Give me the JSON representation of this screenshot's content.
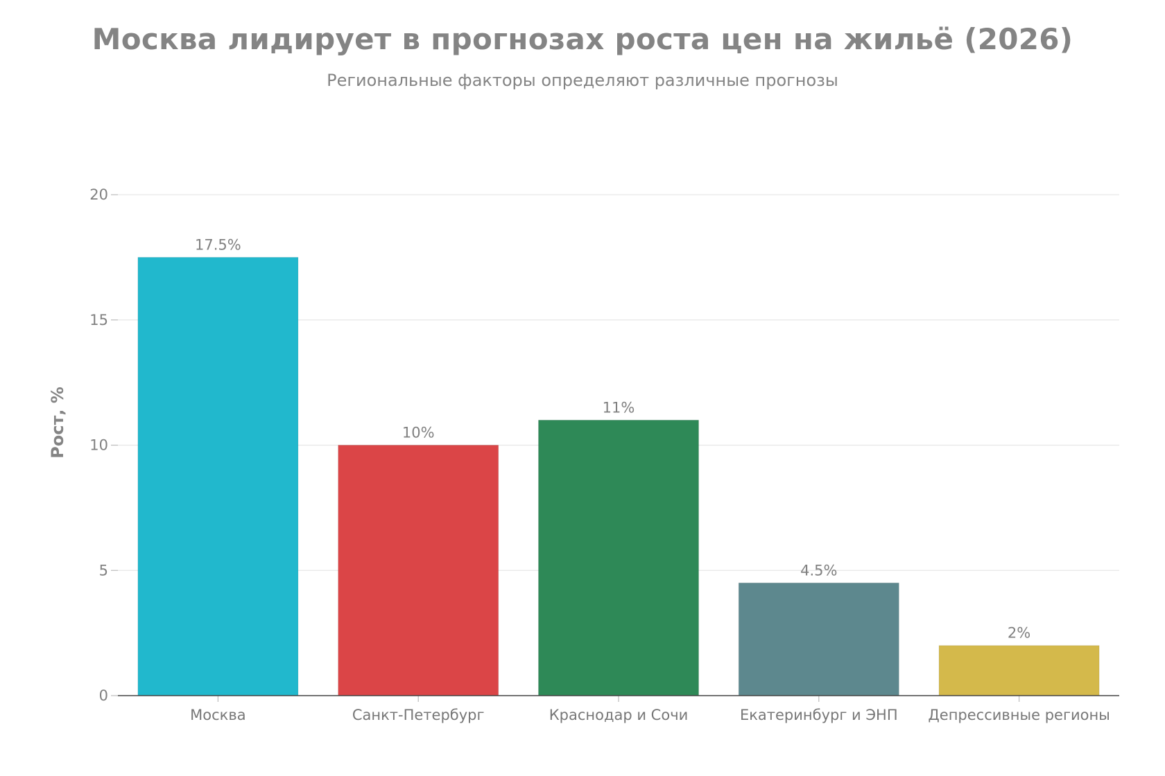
{
  "chart_data": {
    "type": "bar",
    "title": "Москва лидирует в прогнозах роста цен на жильё (2026)",
    "subtitle": "Региональные факторы определяют различные прогнозы",
    "xlabel": "",
    "ylabel": "Рост, %",
    "ylim": [
      0,
      20
    ],
    "yticks": [
      0,
      5,
      10,
      15,
      20
    ],
    "grid": true,
    "categories": [
      "Москва",
      "Санкт-Петербург",
      "Краснодар и Сочи",
      "Екатеринбург и ЭНП",
      "Депрессивные регионы"
    ],
    "values": [
      17.5,
      10,
      11,
      4.5,
      2
    ],
    "value_labels": [
      "17.5%",
      "10%",
      "11%",
      "4.5%",
      "2%"
    ],
    "colors": [
      "#21b8cd",
      "#db4547",
      "#2e8957",
      "#5d888e",
      "#d4b94b"
    ]
  }
}
